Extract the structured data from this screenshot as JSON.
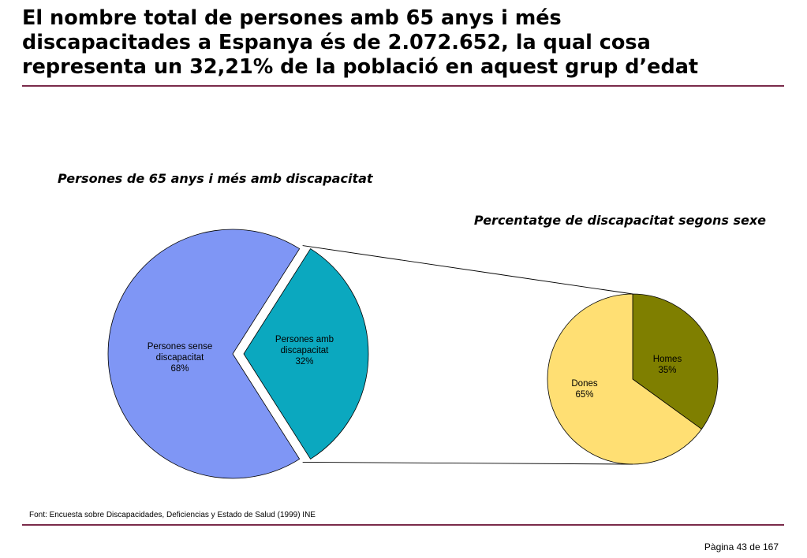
{
  "page": {
    "title_lines": [
      "El nombre total de persones amb  65 anys i més",
      "discapacitades a Espanya és de 2.072.652, la qual cosa",
      "representa un 32,21% de la població en aquest grup d’edat"
    ],
    "source": "Font: Encuesta sobre Discapacidades, Deficiencias y Estado de Salud (1999) INE",
    "page_number": "Pàgina 43 de 167"
  },
  "chart_data": [
    {
      "type": "pie",
      "title": "Persones de 65 anys i més amb discapacitat",
      "slices": [
        {
          "label_lines": [
            "Persones sense",
            "discapacitat",
            "68%"
          ],
          "value": 68,
          "color": "#7f96f5",
          "exploded": false
        },
        {
          "label_lines": [
            "Persones amb",
            "discapacitat",
            "32%"
          ],
          "value": 32,
          "color": "#0ba8bf",
          "exploded": true
        }
      ]
    },
    {
      "type": "pie",
      "title": "Percentatge de discapacitat segons sexe",
      "slices": [
        {
          "label_lines": [
            "Homes",
            "35%"
          ],
          "value": 35,
          "color": "#7f7f00"
        },
        {
          "label_lines": [
            "Dones",
            "65%"
          ],
          "value": 65,
          "color": "#ffdf73"
        }
      ]
    }
  ]
}
